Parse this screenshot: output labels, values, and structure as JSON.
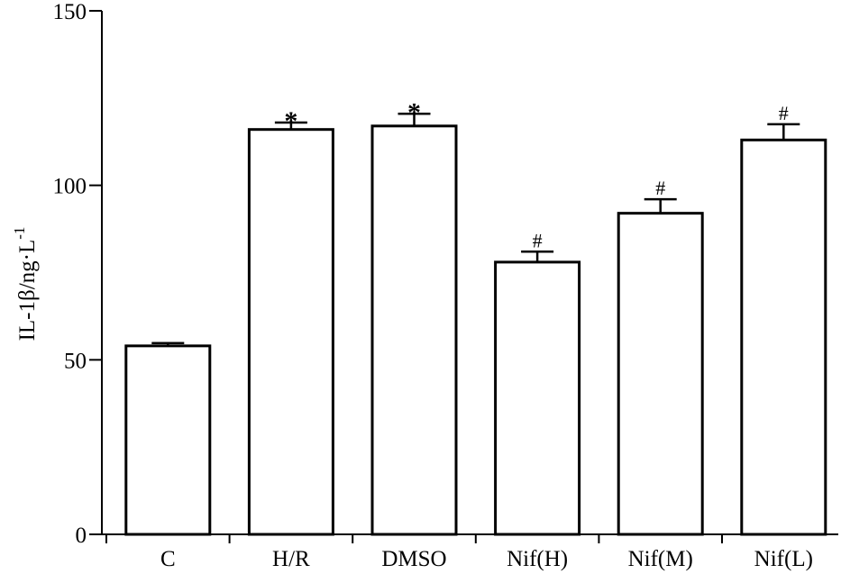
{
  "chart_data": {
    "type": "bar",
    "categories": [
      "C",
      "H/R",
      "DMSO",
      "Nif(H)",
      "Nif(M)",
      "Nif(L)"
    ],
    "values": [
      54,
      116,
      117,
      78,
      92,
      113
    ],
    "errors": [
      0.8,
      2,
      3.5,
      3,
      4,
      4.5
    ],
    "annotations": [
      "",
      "*",
      "*",
      "#",
      "#",
      "#"
    ],
    "ylabel": "IL-1β/ng·L",
    "ylabel_superscript": "-1",
    "xlabel": "",
    "ylim": [
      0,
      150
    ],
    "yticks": [
      0,
      50,
      100,
      150
    ],
    "grid": false
  }
}
